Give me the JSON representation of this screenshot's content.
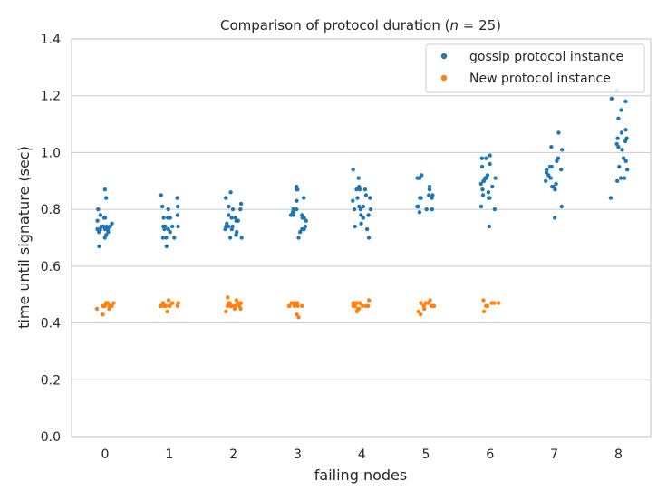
{
  "chart_data": {
    "type": "scatter",
    "subtype": "strip",
    "title": "Comparison of protocol duration (n = 25)",
    "title_prefix": "Comparison of protocol duration (",
    "title_var": "n",
    "title_suffix": " = 25)",
    "xlabel": "failing nodes",
    "ylabel": "time until signature (sec)",
    "categories": [
      "0",
      "1",
      "2",
      "3",
      "4",
      "5",
      "6",
      "7",
      "8"
    ],
    "ylim": [
      0.0,
      1.4
    ],
    "yticks": [
      "0.0",
      "0.2",
      "0.4",
      "0.6",
      "0.8",
      "1.0",
      "1.2",
      "1.4"
    ],
    "grid": true,
    "legend_position": "top-right",
    "series": [
      {
        "name": "gossip protocol instance",
        "color": "#1f77b4",
        "values": [
          [
            0.87,
            0.84,
            0.8,
            0.78,
            0.77,
            0.77,
            0.76,
            0.75,
            0.74,
            0.74,
            0.74,
            0.74,
            0.73,
            0.73,
            0.73,
            0.73,
            0.72,
            0.72,
            0.71,
            0.7,
            0.67
          ],
          [
            0.85,
            0.84,
            0.81,
            0.81,
            0.8,
            0.78,
            0.77,
            0.77,
            0.77,
            0.74,
            0.74,
            0.74,
            0.74,
            0.73,
            0.73,
            0.72,
            0.7,
            0.7,
            0.7,
            0.67
          ],
          [
            0.86,
            0.84,
            0.82,
            0.81,
            0.8,
            0.8,
            0.78,
            0.77,
            0.77,
            0.76,
            0.76,
            0.75,
            0.74,
            0.74,
            0.74,
            0.73,
            0.73,
            0.72,
            0.71,
            0.7,
            0.7
          ],
          [
            0.88,
            0.87,
            0.87,
            0.84,
            0.83,
            0.8,
            0.8,
            0.79,
            0.78,
            0.78,
            0.78,
            0.77,
            0.77,
            0.76,
            0.74,
            0.73,
            0.73,
            0.72,
            0.7
          ],
          [
            0.94,
            0.91,
            0.88,
            0.87,
            0.87,
            0.87,
            0.85,
            0.84,
            0.84,
            0.83,
            0.81,
            0.81,
            0.8,
            0.8,
            0.8,
            0.78,
            0.78,
            0.77,
            0.75,
            0.74,
            0.73,
            0.7
          ],
          [
            0.92,
            0.91,
            0.91,
            0.88,
            0.87,
            0.85,
            0.85,
            0.84,
            0.84,
            0.84,
            0.81,
            0.81,
            0.81,
            0.8,
            0.8,
            0.8,
            0.79
          ],
          [
            0.99,
            0.98,
            0.98,
            0.96,
            0.95,
            0.92,
            0.91,
            0.91,
            0.91,
            0.9,
            0.9,
            0.89,
            0.88,
            0.87,
            0.86,
            0.85,
            0.84,
            0.84,
            0.81,
            0.8,
            0.74
          ],
          [
            1.07,
            1.02,
            1.01,
            0.98,
            0.97,
            0.95,
            0.95,
            0.94,
            0.94,
            0.94,
            0.93,
            0.92,
            0.91,
            0.9,
            0.89,
            0.88,
            0.88,
            0.87,
            0.81,
            0.77
          ],
          [
            1.22,
            1.19,
            1.18,
            1.15,
            1.12,
            1.08,
            1.07,
            1.05,
            1.05,
            1.04,
            1.03,
            1.02,
            1.01,
            0.98,
            0.97,
            0.95,
            0.94,
            0.91,
            0.91,
            0.9,
            0.84
          ]
        ]
      },
      {
        "name": "New protocol instance",
        "color": "#ff7f0e",
        "values": [
          [
            0.47,
            0.47,
            0.47,
            0.46,
            0.46,
            0.46,
            0.46,
            0.46,
            0.46,
            0.45,
            0.45,
            0.43
          ],
          [
            0.48,
            0.47,
            0.47,
            0.47,
            0.47,
            0.47,
            0.46,
            0.46,
            0.46,
            0.46,
            0.46,
            0.46,
            0.46,
            0.44
          ],
          [
            0.49,
            0.48,
            0.47,
            0.47,
            0.47,
            0.47,
            0.46,
            0.46,
            0.46,
            0.46,
            0.46,
            0.46,
            0.45,
            0.45,
            0.44
          ],
          [
            0.47,
            0.47,
            0.47,
            0.47,
            0.46,
            0.46,
            0.46,
            0.46,
            0.46,
            0.43,
            0.42
          ],
          [
            0.48,
            0.47,
            0.47,
            0.47,
            0.47,
            0.47,
            0.46,
            0.46,
            0.46,
            0.46,
            0.46,
            0.45,
            0.45,
            0.44
          ],
          [
            0.48,
            0.47,
            0.47,
            0.47,
            0.46,
            0.46,
            0.46,
            0.46,
            0.46,
            0.45,
            0.44,
            0.43
          ],
          [
            0.48,
            0.47,
            0.47,
            0.47,
            0.46,
            0.46,
            0.46,
            0.44
          ],
          [],
          []
        ]
      }
    ]
  }
}
